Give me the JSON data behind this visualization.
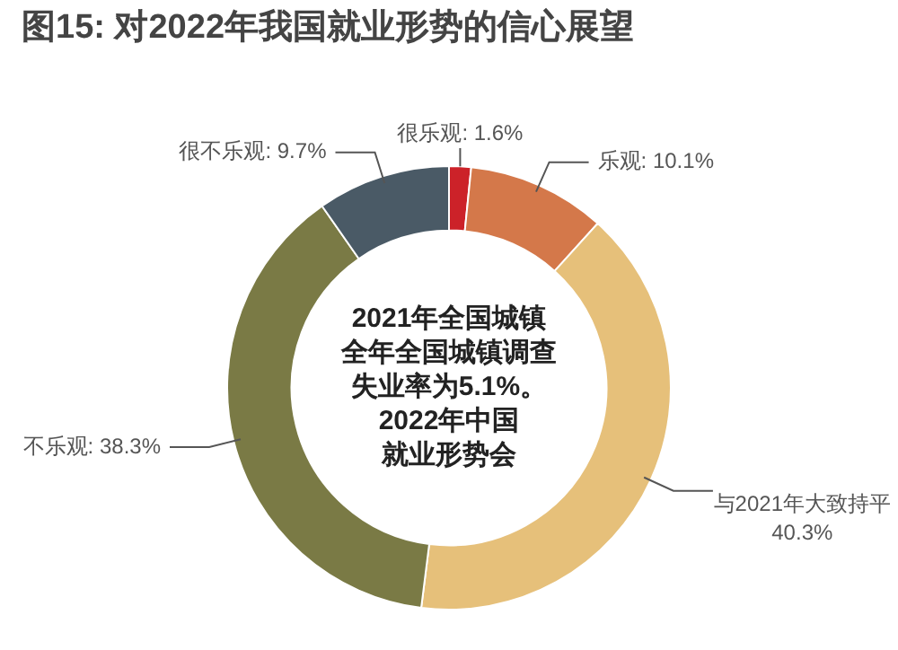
{
  "chart_data": {
    "type": "donut",
    "title": "图15: 对2022年我国就业形势的信心展望",
    "categories": [
      "很乐观",
      "乐观",
      "与2021年大致持平",
      "不乐观",
      "很不乐观"
    ],
    "values": [
      1.6,
      10.1,
      40.3,
      38.3,
      9.7
    ],
    "colors": [
      "#cc2229",
      "#d4784a",
      "#e6c07a",
      "#7a7a45",
      "#4a5a66"
    ],
    "annotations": [
      "2021年全国城镇",
      "全年全国城镇调查",
      "失业率为5.1%。",
      "2022年中国",
      "就业形势会"
    ],
    "value_labels": [
      "1.6%",
      "10.1%",
      "40.3%",
      "38.3%",
      "9.7%"
    ],
    "legend": false
  }
}
